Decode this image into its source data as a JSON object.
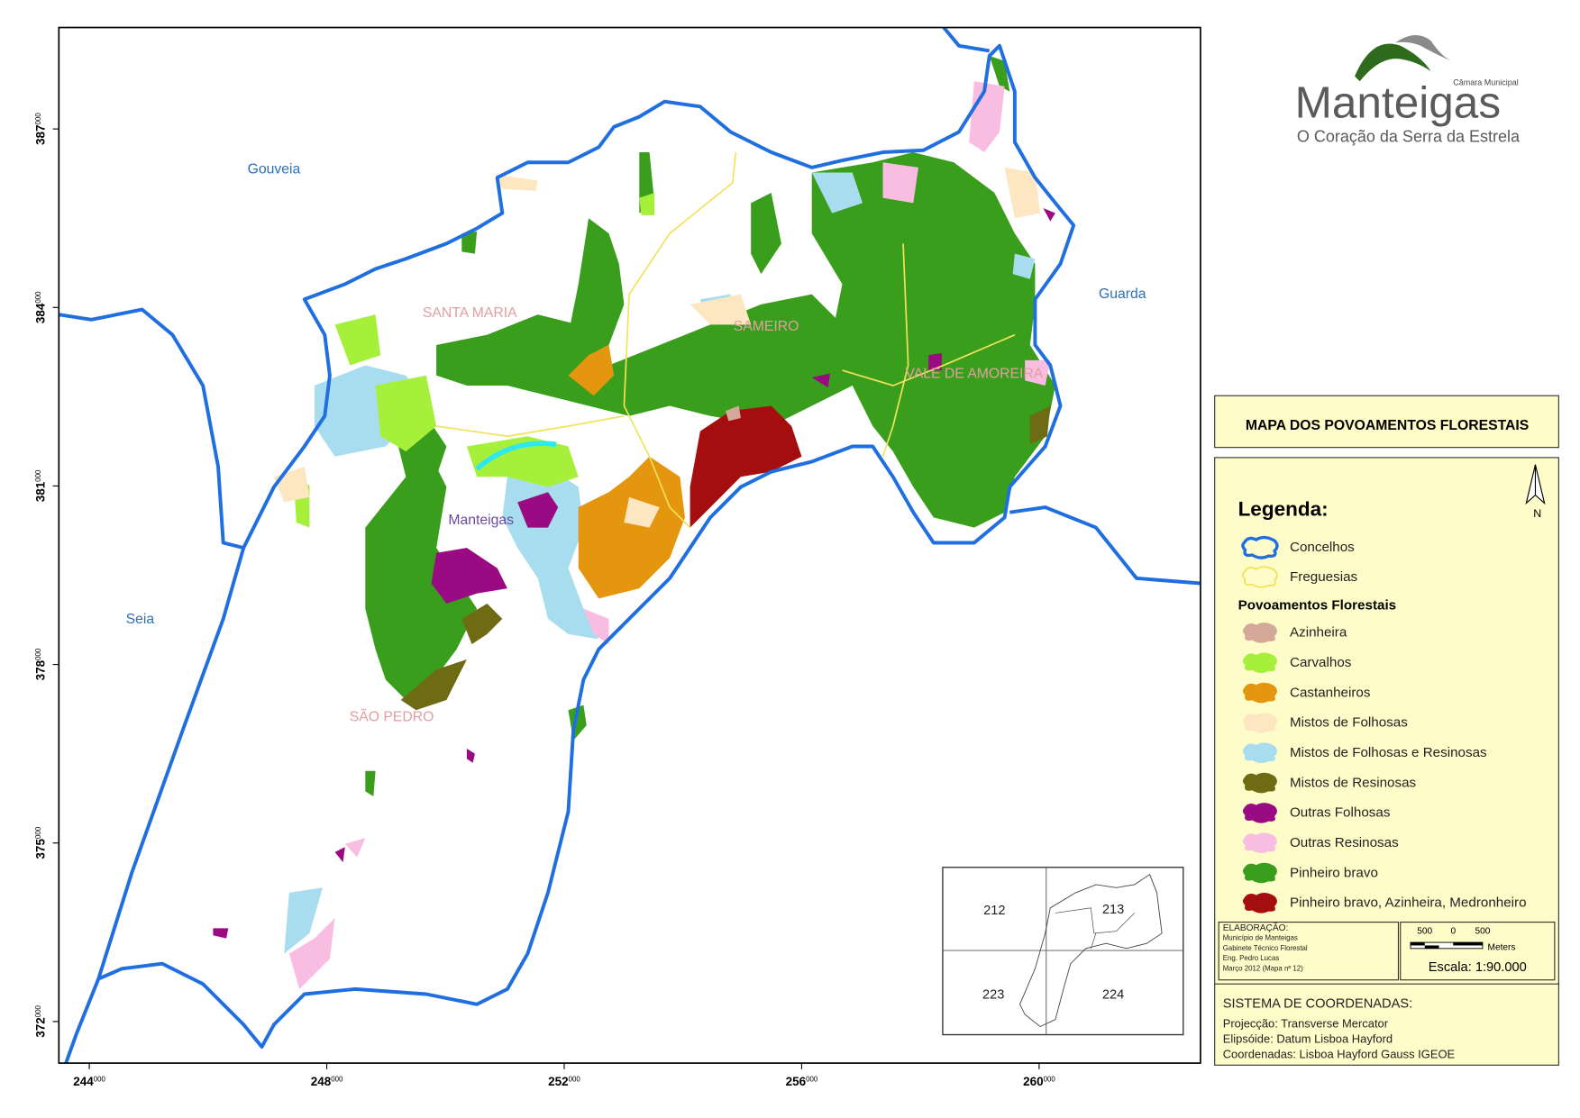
{
  "map": {
    "place_labels": [
      "Gouveia",
      "Guarda",
      "Seia",
      "SANTA MARIA",
      "SAMEIRO",
      "VALE DE AMOREIRA",
      "Manteigas",
      "SÃO PEDRO"
    ],
    "x_ticks": [
      {
        "main": "244",
        "sup": "000"
      },
      {
        "main": "248",
        "sup": "000"
      },
      {
        "main": "252",
        "sup": "000"
      },
      {
        "main": "256",
        "sup": "000"
      },
      {
        "main": "260",
        "sup": "000"
      }
    ],
    "y_ticks": [
      {
        "main": "372",
        "sup": "000"
      },
      {
        "main": "375",
        "sup": "000"
      },
      {
        "main": "378",
        "sup": "000"
      },
      {
        "main": "381",
        "sup": "000"
      },
      {
        "main": "384",
        "sup": "000"
      },
      {
        "main": "387",
        "sup": "000"
      }
    ],
    "inset_labels": [
      "212",
      "213",
      "223",
      "224"
    ]
  },
  "logo": {
    "small": "Câmara Municipal",
    "name": "Manteigas",
    "tagline": "O Coração da Serra da Estrela"
  },
  "title": "MAPA DOS POVOAMENTOS FLORESTAIS",
  "legend": {
    "title": "Legenda:",
    "north": "N",
    "boundaries": [
      {
        "label": "Concelhos",
        "color": "#1f6fe0"
      },
      {
        "label": "Freguesias",
        "color": "#f2e25a"
      }
    ],
    "section_title": "Povoamentos Florestais",
    "items": [
      {
        "label": "Azinheira",
        "color": "#d4a99a"
      },
      {
        "label": "Carvalhos",
        "color": "#a6f03c"
      },
      {
        "label": "Castanheiros",
        "color": "#e5960f"
      },
      {
        "label": "Mistos de Folhosas",
        "color": "#fde6c2"
      },
      {
        "label": "Mistos de Folhosas e Resinosas",
        "color": "#a8dcef"
      },
      {
        "label": "Mistos de Resinosas",
        "color": "#6e6b14"
      },
      {
        "label": "Outras Folhosas",
        "color": "#9a0a82"
      },
      {
        "label": "Outras Resinosas",
        "color": "#f9bde2"
      },
      {
        "label": "Pinheiro bravo",
        "color": "#3a9e1d"
      },
      {
        "label": "Pinheiro bravo, Azinheira, Medronheiro",
        "color": "#a50e0e"
      }
    ]
  },
  "credits": {
    "lines": [
      "ELABORAÇÃO:",
      "Município de Manteigas",
      "Gabinete Técnico Florestal",
      "Eng. Pedro Lucas",
      "Março 2012 (Mapa nº 12)"
    ]
  },
  "scale": {
    "labels": [
      "500",
      "0",
      "500"
    ],
    "unit": "Meters",
    "text": "Escala: 1:90.000"
  },
  "coordinates": {
    "title": "SISTEMA DE COORDENADAS:",
    "lines": [
      "Projecção: Transverse Mercator",
      "Elipsóide: Datum Lisboa Hayford",
      "Coordenadas: Lisboa Hayford Gauss IGEOE"
    ]
  }
}
